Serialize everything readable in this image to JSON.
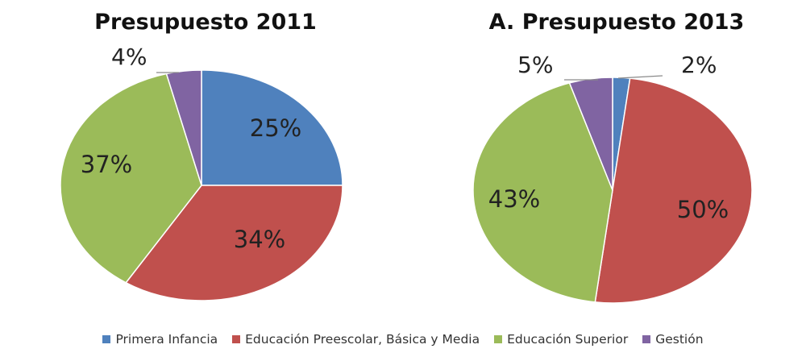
{
  "chart_data": [
    {
      "type": "pie",
      "title": "Presupuesto 2011",
      "categories": [
        "Primera Infancia",
        "Educación Preescolar, Básica y Media",
        "Educación Superior",
        "Gestión"
      ],
      "values": [
        25,
        34,
        37,
        4
      ],
      "labels": [
        "25%",
        "34%",
        "37%",
        "4%"
      ]
    },
    {
      "type": "pie",
      "title": "A. Presupuesto 2013",
      "categories": [
        "Primera Infancia",
        "Educación Preescolar, Básica y Media",
        "Educación Superior",
        "Gestión"
      ],
      "values": [
        2,
        50,
        43,
        5
      ],
      "labels": [
        "2%",
        "50%",
        "43%",
        "5%"
      ]
    }
  ],
  "legend": {
    "placement": "bottom",
    "items": [
      {
        "label": "Primera Infancia",
        "color": "#4f81bd"
      },
      {
        "label": "Educación Preescolar, Básica y Media",
        "color": "#c0504d"
      },
      {
        "label": "Educación Superior",
        "color": "#9bbb59"
      },
      {
        "label": "Gestión",
        "color": "#8064a2"
      }
    ]
  },
  "colors": [
    "#4f81bd",
    "#c0504d",
    "#9bbb59",
    "#8064a2"
  ]
}
